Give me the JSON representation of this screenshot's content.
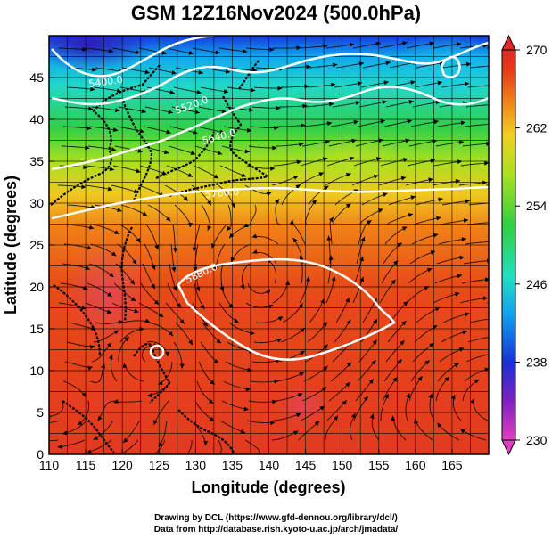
{
  "title": "GSM 12Z16Nov2024 (500.0hPa)",
  "map": {
    "x_axis": {
      "label": "Longitude (degrees)",
      "range": [
        110,
        170
      ],
      "ticks": [
        "110",
        "115",
        "120",
        "125",
        "130",
        "135",
        "140",
        "145",
        "150",
        "155",
        "160",
        "165"
      ]
    },
    "y_axis": {
      "label": "Latitude (degrees)",
      "range": [
        0,
        50
      ],
      "ticks": [
        "0",
        "5",
        "10",
        "15",
        "20",
        "25",
        "30",
        "35",
        "40",
        "45"
      ]
    },
    "grid": true,
    "contour_labels": [
      "5400.0",
      "5520.0",
      "5640.0",
      "5760.0",
      "5880.0"
    ],
    "colorbar": {
      "ticks": [
        "230",
        "238",
        "246",
        "254",
        "262",
        "270"
      ],
      "range": [
        230,
        270
      ],
      "colors": [
        "#e040c0",
        "#8020c0",
        "#1830d8",
        "#10a0f0",
        "#20e0c0",
        "#30d040",
        "#a8e020",
        "#f0d020",
        "#f08018",
        "#e83818",
        "#e02828"
      ]
    }
  },
  "credit": {
    "line1": "Drawing by DCL (https://www.gfd-dennou.org/library/dcl/)",
    "line2": "Data from http://database.rish.kyoto-u.ac.jp/arch/jmadata/"
  }
}
